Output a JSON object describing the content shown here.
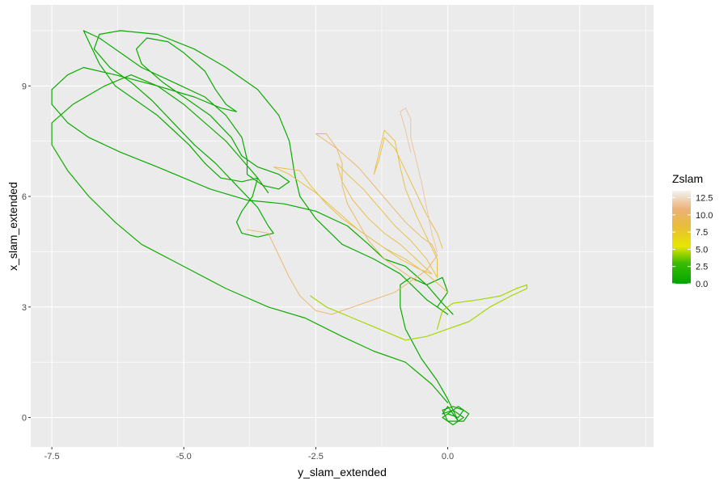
{
  "chart_data": {
    "type": "path",
    "xlabel": "y_slam_extended",
    "ylabel": "x_slam_extended",
    "xlim": [
      -7.9,
      3.9
    ],
    "ylim": [
      -0.8,
      11.2
    ],
    "x_ticks": [
      -7.5,
      -5.0,
      -2.5,
      0.0
    ],
    "x_tick_labels": [
      "-7.5",
      "-5.0",
      "-2.5",
      "0.0"
    ],
    "y_ticks": [
      0,
      3,
      6,
      9
    ],
    "y_tick_labels": [
      "0",
      "3",
      "6",
      "9"
    ],
    "grid": true,
    "background": "#ebebeb",
    "legend": {
      "title": "Zslam",
      "placement": "right",
      "type": "colorbar",
      "range": [
        0,
        13.5
      ],
      "ticks": [
        0.0,
        2.5,
        5.0,
        7.5,
        10.0,
        12.5
      ],
      "tick_labels": [
        "0.0",
        "2.5",
        "5.0",
        "7.5",
        "10.0",
        "12.5"
      ],
      "colors": [
        "#00a600",
        "#3bbc00",
        "#e6e600",
        "#e9bd3a",
        "#ecb176",
        "#f2f2f2"
      ],
      "color_stops": [
        0,
        0.22,
        0.4,
        0.62,
        0.8,
        1
      ]
    },
    "series": [
      {
        "z": 0.5,
        "points": [
          [
            0.0,
            0.1
          ],
          [
            0.2,
            0.0
          ],
          [
            0.3,
            0.2
          ],
          [
            0.1,
            0.3
          ],
          [
            -0.1,
            0.2
          ],
          [
            0.0,
            -0.1
          ],
          [
            0.3,
            -0.1
          ],
          [
            0.4,
            0.1
          ],
          [
            0.2,
            0.3
          ],
          [
            -0.1,
            0.0
          ],
          [
            0.1,
            -0.2
          ],
          [
            0.3,
            0.0
          ],
          [
            0.1,
            0.2
          ],
          [
            -0.1,
            0.1
          ],
          [
            0.0,
            0.3
          ],
          [
            0.2,
            -0.1
          ],
          [
            0.0,
            0.5
          ],
          [
            -0.2,
            1.0
          ],
          [
            -0.5,
            1.6
          ],
          [
            -0.8,
            2.4
          ],
          [
            -0.9,
            3.0
          ],
          [
            -0.9,
            3.6
          ],
          [
            -0.7,
            3.8
          ],
          [
            -0.4,
            3.6
          ],
          [
            -0.1,
            3.8
          ],
          [
            0.0,
            3.4
          ],
          [
            -0.2,
            3.0
          ],
          [
            0.0,
            2.8
          ],
          [
            -0.4,
            3.2
          ],
          [
            -0.9,
            3.9
          ],
          [
            -1.4,
            4.3
          ],
          [
            -2.0,
            4.7
          ],
          [
            -2.5,
            5.4
          ],
          [
            -2.8,
            6.0
          ],
          [
            -2.9,
            6.6
          ],
          [
            -3.0,
            7.5
          ],
          [
            -3.2,
            8.2
          ],
          [
            -3.6,
            8.9
          ],
          [
            -4.2,
            9.5
          ],
          [
            -4.8,
            10.0
          ],
          [
            -5.5,
            10.4
          ],
          [
            -6.2,
            10.5
          ],
          [
            -6.6,
            10.4
          ],
          [
            -6.7,
            10.0
          ],
          [
            -6.4,
            9.5
          ],
          [
            -6.0,
            9.1
          ],
          [
            -5.6,
            8.6
          ],
          [
            -5.2,
            8.0
          ],
          [
            -4.8,
            7.4
          ],
          [
            -4.4,
            6.9
          ],
          [
            -4.0,
            6.3
          ],
          [
            -3.6,
            5.7
          ],
          [
            -3.4,
            5.2
          ],
          [
            -3.3,
            5.0
          ],
          [
            -3.6,
            4.9
          ],
          [
            -3.9,
            5.0
          ],
          [
            -4.0,
            5.3
          ],
          [
            -3.9,
            5.6
          ],
          [
            -3.7,
            6.0
          ],
          [
            -3.6,
            6.5
          ],
          [
            -3.9,
            6.4
          ],
          [
            -4.3,
            6.5
          ],
          [
            -4.6,
            6.9
          ],
          [
            -4.9,
            7.4
          ],
          [
            -5.2,
            7.8
          ],
          [
            -5.5,
            8.2
          ],
          [
            -5.9,
            8.6
          ],
          [
            -6.3,
            9.0
          ],
          [
            -6.6,
            9.6
          ],
          [
            -6.8,
            10.2
          ],
          [
            -6.9,
            10.5
          ],
          [
            -6.6,
            10.3
          ],
          [
            -6.2,
            9.9
          ],
          [
            -5.8,
            9.5
          ],
          [
            -5.2,
            9.1
          ],
          [
            -4.6,
            8.7
          ],
          [
            -4.2,
            8.2
          ],
          [
            -3.9,
            7.6
          ],
          [
            -3.8,
            7.0
          ],
          [
            -3.8,
            6.6
          ],
          [
            -3.5,
            6.3
          ],
          [
            -3.2,
            6.2
          ],
          [
            -3.0,
            6.4
          ],
          [
            -3.2,
            6.6
          ],
          [
            -3.6,
            6.8
          ],
          [
            -3.9,
            7.1
          ],
          [
            -4.1,
            7.6
          ],
          [
            -4.5,
            8.2
          ],
          [
            -4.9,
            8.6
          ],
          [
            -5.4,
            9.1
          ],
          [
            -5.8,
            9.6
          ],
          [
            -5.9,
            10.0
          ],
          [
            -5.7,
            10.3
          ],
          [
            -5.3,
            10.2
          ],
          [
            -5.0,
            9.9
          ],
          [
            -4.6,
            9.4
          ],
          [
            -4.4,
            8.9
          ],
          [
            -4.2,
            8.5
          ],
          [
            -4.0,
            8.3
          ],
          [
            -4.3,
            8.4
          ],
          [
            -4.8,
            8.7
          ],
          [
            -5.5,
            9.0
          ],
          [
            -6.3,
            9.3
          ],
          [
            -6.9,
            9.5
          ],
          [
            -7.2,
            9.3
          ],
          [
            -7.5,
            8.9
          ],
          [
            -7.5,
            8.5
          ],
          [
            -7.2,
            8.0
          ],
          [
            -6.8,
            7.6
          ],
          [
            -6.2,
            7.2
          ],
          [
            -5.5,
            6.8
          ],
          [
            -5.0,
            6.5
          ],
          [
            -4.5,
            6.2
          ],
          [
            -3.8,
            5.9
          ],
          [
            -3.1,
            5.8
          ],
          [
            -2.5,
            5.6
          ],
          [
            -1.9,
            5.2
          ],
          [
            -1.5,
            4.7
          ],
          [
            -1.2,
            4.3
          ],
          [
            -0.8,
            4.1
          ],
          [
            -0.4,
            3.6
          ],
          [
            -0.1,
            3.1
          ],
          [
            0.1,
            2.8
          ]
        ]
      },
      {
        "z": 0.8,
        "points": [
          [
            0.0,
            0.4
          ],
          [
            -0.3,
            0.9
          ],
          [
            -0.8,
            1.5
          ],
          [
            -1.4,
            1.8
          ],
          [
            -2.0,
            2.2
          ],
          [
            -2.7,
            2.7
          ],
          [
            -3.4,
            3.0
          ],
          [
            -4.2,
            3.5
          ],
          [
            -5.0,
            4.1
          ],
          [
            -5.8,
            4.7
          ],
          [
            -6.3,
            5.3
          ],
          [
            -6.8,
            6.0
          ],
          [
            -7.2,
            6.7
          ],
          [
            -7.5,
            7.4
          ],
          [
            -7.5,
            8.0
          ],
          [
            -7.1,
            8.5
          ],
          [
            -6.5,
            9.0
          ],
          [
            -6.0,
            9.3
          ],
          [
            -5.5,
            9.0
          ],
          [
            -5.0,
            8.5
          ],
          [
            -4.6,
            8.0
          ],
          [
            -4.2,
            7.5
          ],
          [
            -3.9,
            7.0
          ],
          [
            -3.6,
            6.5
          ],
          [
            -3.4,
            6.1
          ]
        ]
      },
      {
        "z": 4.5,
        "points": [
          [
            -0.2,
            2.4
          ],
          [
            -0.1,
            2.9
          ],
          [
            0.1,
            3.1
          ],
          [
            0.6,
            3.2
          ],
          [
            1.0,
            3.3
          ],
          [
            1.3,
            3.5
          ],
          [
            1.5,
            3.6
          ],
          [
            1.5,
            3.5
          ],
          [
            1.2,
            3.3
          ],
          [
            0.8,
            3.0
          ],
          [
            0.4,
            2.6
          ],
          [
            0.0,
            2.4
          ],
          [
            -0.4,
            2.2
          ],
          [
            -0.8,
            2.1
          ],
          [
            -1.3,
            2.4
          ],
          [
            -1.8,
            2.7
          ],
          [
            -2.3,
            3.0
          ],
          [
            -2.6,
            3.3
          ]
        ]
      },
      {
        "z": 8.5,
        "points": [
          [
            0.0,
            3.4
          ],
          [
            -0.4,
            3.9
          ],
          [
            -0.8,
            4.3
          ],
          [
            -1.2,
            4.6
          ],
          [
            -1.6,
            5.0
          ],
          [
            -2.0,
            5.4
          ],
          [
            -2.3,
            5.8
          ],
          [
            -2.6,
            6.3
          ],
          [
            -2.8,
            6.7
          ],
          [
            -3.3,
            6.8
          ],
          [
            -3.0,
            6.6
          ],
          [
            -2.5,
            6.1
          ],
          [
            -2.1,
            5.6
          ],
          [
            -1.7,
            5.1
          ],
          [
            -1.3,
            4.7
          ],
          [
            -0.9,
            4.3
          ],
          [
            -0.5,
            4.0
          ],
          [
            -0.3,
            3.9
          ],
          [
            -0.6,
            4.3
          ],
          [
            -0.9,
            4.7
          ],
          [
            -1.2,
            5.0
          ],
          [
            -1.5,
            5.4
          ],
          [
            -1.8,
            5.9
          ],
          [
            -2.0,
            6.4
          ],
          [
            -2.1,
            6.9
          ],
          [
            -1.9,
            6.6
          ],
          [
            -1.6,
            6.2
          ],
          [
            -1.3,
            5.7
          ],
          [
            -1.0,
            5.2
          ],
          [
            -0.7,
            4.8
          ],
          [
            -0.4,
            4.3
          ],
          [
            -0.2,
            3.8
          ],
          [
            -0.2,
            4.3
          ],
          [
            -0.4,
            4.9
          ],
          [
            -0.6,
            5.5
          ],
          [
            -0.8,
            6.2
          ],
          [
            -0.9,
            6.8
          ],
          [
            -1.0,
            7.5
          ],
          [
            -1.2,
            7.8
          ],
          [
            -1.3,
            7.2
          ],
          [
            -1.4,
            6.6
          ],
          [
            -1.3,
            7.0
          ],
          [
            -1.2,
            7.6
          ],
          [
            -1.0,
            7.3
          ],
          [
            -0.8,
            6.7
          ],
          [
            -0.6,
            6.1
          ],
          [
            -0.4,
            5.5
          ],
          [
            -0.2,
            5.0
          ],
          [
            -0.1,
            4.6
          ]
        ]
      },
      {
        "z": 10.0,
        "points": [
          [
            -0.6,
            3.7
          ],
          [
            -0.9,
            4.0
          ],
          [
            -1.2,
            4.3
          ],
          [
            -1.5,
            4.8
          ],
          [
            -1.7,
            5.3
          ],
          [
            -1.9,
            5.8
          ],
          [
            -2.0,
            6.3
          ],
          [
            -2.0,
            6.9
          ],
          [
            -2.1,
            7.3
          ],
          [
            -2.3,
            7.7
          ],
          [
            -2.5,
            7.7
          ],
          [
            -2.1,
            7.3
          ],
          [
            -1.7,
            6.8
          ],
          [
            -1.4,
            6.3
          ],
          [
            -1.1,
            5.8
          ],
          [
            -0.8,
            5.3
          ],
          [
            -0.5,
            4.9
          ],
          [
            -0.3,
            4.7
          ],
          [
            -0.2,
            4.4
          ],
          [
            -0.4,
            4.0
          ],
          [
            -0.7,
            3.7
          ],
          [
            -1.0,
            3.4
          ],
          [
            -1.4,
            3.2
          ],
          [
            -1.8,
            3.0
          ],
          [
            -2.2,
            2.8
          ],
          [
            -2.5,
            2.9
          ],
          [
            -2.8,
            3.3
          ],
          [
            -3.0,
            3.8
          ],
          [
            -3.2,
            4.4
          ],
          [
            -3.4,
            5.0
          ],
          [
            -3.8,
            5.1
          ]
        ]
      },
      {
        "z": 11.5,
        "points": [
          [
            -0.2,
            4.5
          ],
          [
            -0.3,
            5.0
          ],
          [
            -0.4,
            5.7
          ],
          [
            -0.5,
            6.4
          ],
          [
            -0.6,
            7.0
          ],
          [
            -0.7,
            7.6
          ],
          [
            -0.7,
            8.1
          ],
          [
            -0.8,
            8.4
          ],
          [
            -0.9,
            8.3
          ],
          [
            -0.8,
            7.8
          ],
          [
            -0.7,
            7.2
          ]
        ]
      }
    ]
  }
}
